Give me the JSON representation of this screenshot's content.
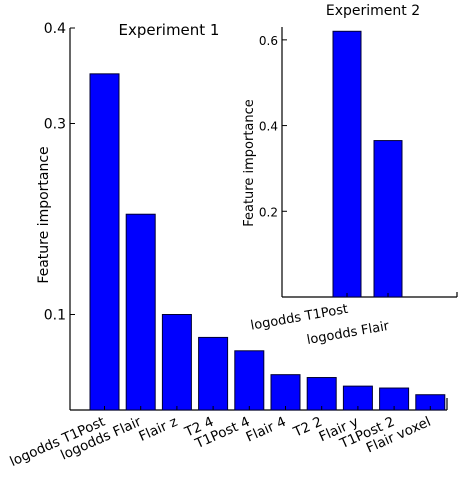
{
  "chart_data": [
    {
      "type": "bar",
      "title": "Experiment 1",
      "xlabel": "",
      "ylabel": "Feature importance",
      "ylim": [
        0.0,
        0.4
      ],
      "yticks": [
        0.1,
        0.3,
        0.4
      ],
      "ytick_labels": [
        "0.1",
        "0.3",
        "0.4"
      ],
      "grid": false,
      "categories": [
        "logodds T1Post",
        "logodds Flair",
        "Flair z",
        "T2 4",
        "T1Post 4",
        "Flair 4",
        "T2 2",
        "Flair y",
        "T1Post 2",
        "Flair voxel"
      ],
      "values": [
        0.352,
        0.205,
        0.1,
        0.076,
        0.062,
        0.037,
        0.034,
        0.025,
        0.023,
        0.016
      ]
    },
    {
      "type": "bar",
      "title": "Experiment 2",
      "xlabel": "",
      "ylabel": "Feature importance",
      "ylim": [
        0.0,
        0.63
      ],
      "yticks": [
        0.2,
        0.4,
        0.6
      ],
      "ytick_labels": [
        "0.2",
        "0.4",
        "0.6"
      ],
      "grid": false,
      "categories": [
        "logodds T1Post",
        "logodds Flair"
      ],
      "values": [
        0.62,
        0.365
      ]
    }
  ],
  "colors": {
    "bar": "#0000ff"
  }
}
